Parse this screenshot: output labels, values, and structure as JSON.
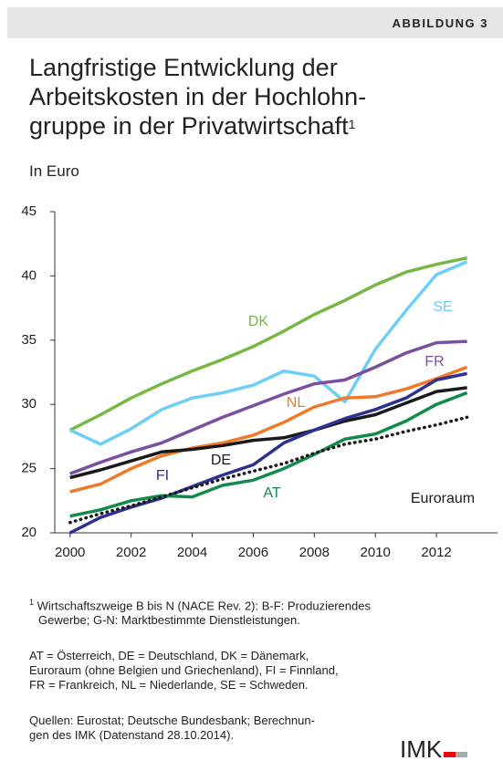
{
  "header": "ABBILDUNG 3",
  "chart_data": {
    "type": "line",
    "title": [
      "Langfristige Entwicklung der",
      "Arbeitskosten in der Hochlohn-",
      "gruppe in der Privatwirtschaft"
    ],
    "title_footnote": "1",
    "subtitle": "In Euro",
    "x": [
      2000,
      2001,
      2002,
      2003,
      2004,
      2005,
      2006,
      2007,
      2008,
      2009,
      2010,
      2011,
      2012,
      2013
    ],
    "xlim": [
      1999.5,
      2014
    ],
    "xticks": [
      2000,
      2002,
      2004,
      2006,
      2008,
      2010,
      2012
    ],
    "ylim": [
      20,
      45
    ],
    "yticks": [
      20,
      25,
      30,
      35,
      40,
      45
    ],
    "series": [
      {
        "name": "DK",
        "color": "#76b843",
        "values": [
          28,
          29.2,
          30.5,
          31.6,
          32.6,
          33.5,
          34.5,
          35.7,
          37,
          38.1,
          39.3,
          40.3,
          40.9,
          41.4
        ]
      },
      {
        "name": "SE",
        "color": "#6dcff6",
        "values": [
          28,
          26.9,
          28.1,
          29.6,
          30.5,
          30.9,
          31.5,
          32.6,
          32.2,
          30.2,
          34.3,
          37.3,
          40.1,
          41.1
        ]
      },
      {
        "name": "FR",
        "color": "#7b4fa0",
        "values": [
          24.6,
          25.5,
          26.3,
          27,
          28,
          29,
          29.9,
          30.8,
          31.6,
          31.9,
          32.9,
          34,
          34.8,
          34.9
        ]
      },
      {
        "name": "NL",
        "color": "#f07a2b",
        "values": [
          23.2,
          23.8,
          25,
          26,
          26.6,
          27,
          27.6,
          28.6,
          29.8,
          30.5,
          30.6,
          31.2,
          32,
          32.9
        ]
      },
      {
        "name": "DE",
        "color": "#1a1a1a",
        "values": [
          24.3,
          24.9,
          25.6,
          26.3,
          26.5,
          26.8,
          27.2,
          27.4,
          28,
          28.7,
          29.2,
          30.1,
          31,
          31.3
        ]
      },
      {
        "name": "FI",
        "color": "#2e3192",
        "values": [
          20,
          21.2,
          22,
          22.7,
          23.6,
          24.5,
          25.3,
          27,
          28,
          28.9,
          29.6,
          30.5,
          31.9,
          32.4
        ]
      },
      {
        "name": "AT",
        "color": "#138a4d",
        "values": [
          21.3,
          21.8,
          22.5,
          22.9,
          22.8,
          23.7,
          24.1,
          25,
          26.1,
          27.3,
          27.7,
          28.7,
          30,
          30.9
        ]
      },
      {
        "name": "Euroraum",
        "color": "#1a1a1a",
        "dotted": true,
        "values": [
          20.8,
          21.5,
          22.1,
          22.8,
          23.5,
          24.2,
          24.8,
          25.4,
          26.2,
          26.9,
          27.3,
          27.9,
          28.4,
          29
        ]
      }
    ]
  },
  "footnote": {
    "mark": "1",
    "lines": [
      "Wirtschaftszweige B bis N (NACE Rev. 2): B-F: Produzierendes",
      "Gewerbe; G-N: Marktbestimmte Dienstleistungen."
    ]
  },
  "abbreviations": [
    "AT = Österreich, DE = Deutschland, DK = Dänemark,",
    "Euroraum (ohne Belgien und Griechenland), FI = Finnland,",
    "FR = Frankreich, NL = Niederlande, SE = Schweden."
  ],
  "sources": [
    "Quellen: Eurostat; Deutsche Bundesbank; Berechnun-",
    "gen des IMK (Datenstand 28.10.2014)."
  ],
  "logo": "IMK"
}
